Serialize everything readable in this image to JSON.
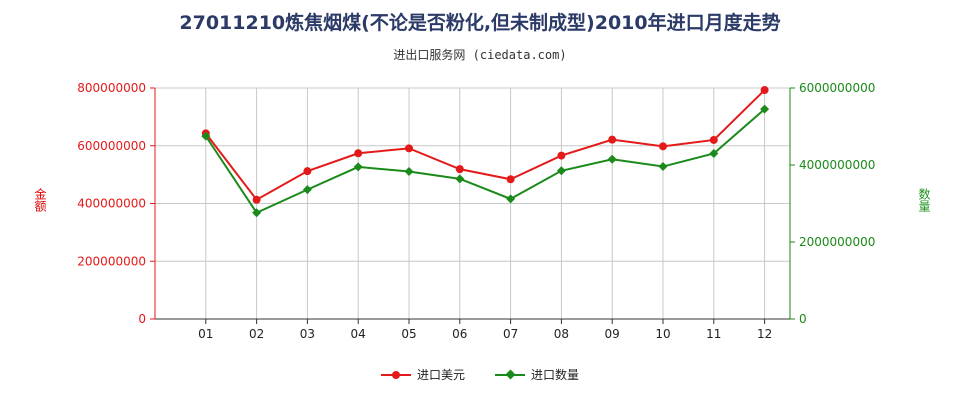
{
  "title": "27011210炼焦烟煤(不论是否粉化,但未制成型)2010年进口月度走势",
  "subtitle": "进出口服务网 (ciedata.com)",
  "colors": {
    "value": "#e41a1a",
    "quantity": "#1a8a1a",
    "grid": "#c8c8c8",
    "axis_left": "#e41a1a",
    "axis_right": "#1a8a1a"
  },
  "chart_data": {
    "type": "line",
    "categories": [
      "01",
      "02",
      "03",
      "04",
      "05",
      "06",
      "07",
      "08",
      "09",
      "10",
      "11",
      "12"
    ],
    "left_axis": {
      "label": "金额",
      "ylim": [
        0,
        800000000
      ],
      "ticks": [
        "0",
        "200000000",
        "400000000",
        "600000000",
        "800000000"
      ]
    },
    "right_axis": {
      "label": "数量",
      "ylim": [
        0,
        6000000000
      ],
      "ticks": [
        "0",
        "2000000000",
        "4000000000",
        "6000000000"
      ]
    },
    "grid": true,
    "legend_position": "bottom",
    "series": [
      {
        "name": "进口美元",
        "axis": "left",
        "color": "#e41a1a",
        "marker": "circle",
        "values": [
          643000000,
          413000000,
          512000000,
          574000000,
          591000000,
          519000000,
          484000000,
          566000000,
          621000000,
          598000000,
          620000000,
          793000000
        ]
      },
      {
        "name": "进口数量",
        "axis": "right",
        "color": "#1a8a1a",
        "marker": "diamond",
        "values": [
          4750000000,
          2760000000,
          3360000000,
          3950000000,
          3830000000,
          3640000000,
          3120000000,
          3850000000,
          4150000000,
          3960000000,
          4300000000,
          5450000000
        ]
      }
    ]
  }
}
